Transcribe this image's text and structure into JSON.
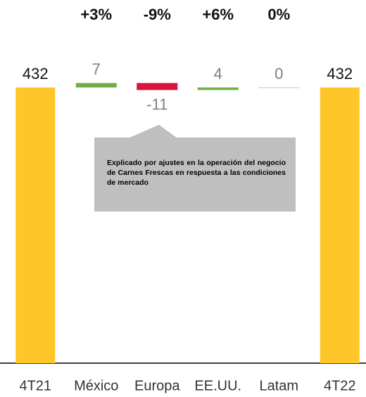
{
  "chart_data": {
    "type": "waterfall",
    "categories": [
      "4T21",
      "México",
      "Europa",
      "EE.UU.",
      "Latam",
      "4T22"
    ],
    "values": [
      432,
      7,
      -11,
      4,
      0,
      432
    ],
    "totals": [
      true,
      false,
      false,
      false,
      false,
      true
    ],
    "change_labels": [
      null,
      "+3%",
      "-9%",
      "+6%",
      "0%",
      null
    ],
    "colors": {
      "total": "#ffc629",
      "increase": "#70ad47",
      "decrease": "#d6163c"
    },
    "ylim": [
      0,
      480
    ],
    "annotation": "Explicado por ajustes en la operación del negocio de Carnes Frescas en respuesta a las condiciones de mercado"
  }
}
